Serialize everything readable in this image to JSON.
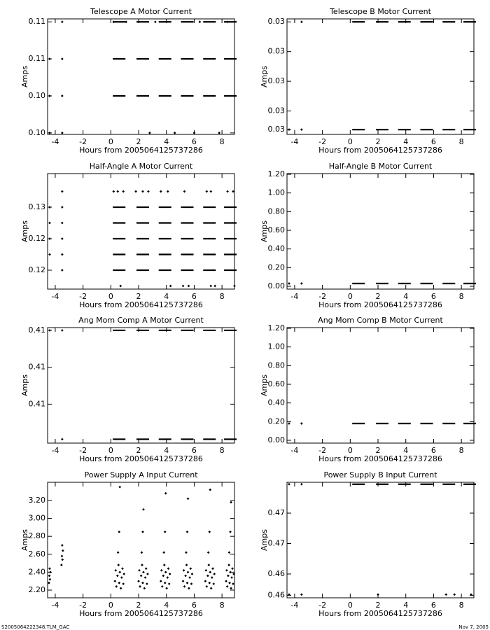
{
  "chart_data": [
    {
      "type": "scatter",
      "title": "Telescope A Motor Current",
      "xlabel": "Hours from 2005064125737286",
      "ylabel": "Amps",
      "xlim": [
        -4.55,
        8.9
      ],
      "xticks": [
        -4,
        -2,
        0,
        2,
        4,
        6,
        8
      ],
      "ylim": [
        0.1009,
        0.1087
      ],
      "yticks": [
        {
          "value": 0.1085,
          "label": "0.11"
        },
        {
          "value": 0.106,
          "label": "0.11"
        },
        {
          "value": 0.1035,
          "label": "0.10"
        },
        {
          "value": 0.101,
          "label": "0.10"
        }
      ],
      "series": [
        {
          "marker": "dash",
          "color": "#000000",
          "x": [
            0.6,
            2.3,
            3.9,
            5.5,
            7.1,
            8.6
          ],
          "y": [
            0.1085,
            0.1085,
            0.1085,
            0.1085,
            0.1085,
            0.1085
          ]
        },
        {
          "marker": "dash",
          "color": "#000000",
          "x": [
            0.6,
            2.3,
            3.9,
            5.5,
            7.1,
            8.6
          ],
          "y": [
            0.106,
            0.106,
            0.106,
            0.106,
            0.106,
            0.106
          ]
        },
        {
          "marker": "dash",
          "color": "#000000",
          "x": [
            0.6,
            2.3,
            3.9,
            5.5,
            7.1,
            8.6
          ],
          "y": [
            0.1035,
            0.1035,
            0.1035,
            0.1035,
            0.1035,
            0.1035
          ]
        },
        {
          "marker": "dot",
          "color": "#000000",
          "x": [
            -3.5,
            -4.4,
            -3.5,
            -4.4,
            -3.5,
            -4.4,
            -3.5,
            0.2,
            1.1,
            2.8,
            3.2,
            4.6,
            6.0,
            6.4,
            7.8,
            8.4
          ],
          "y": [
            0.1085,
            0.106,
            0.106,
            0.1035,
            0.1035,
            0.101,
            0.101,
            0.1085,
            0.1085,
            0.101,
            0.1085,
            0.101,
            0.101,
            0.1085,
            0.101,
            0.1085
          ]
        }
      ]
    },
    {
      "type": "scatter",
      "title": "Telescope B Motor Current",
      "xlabel": "Hours from 2005064125737286",
      "ylabel": "Amps",
      "xlim": [
        -4.55,
        8.9
      ],
      "xticks": [
        -4,
        -2,
        0,
        2,
        4,
        6,
        8
      ],
      "ylim": [
        0.03077,
        0.03388
      ],
      "yticks": [
        {
          "value": 0.0338,
          "label": "0.03"
        },
        {
          "value": 0.033,
          "label": "0.03"
        },
        {
          "value": 0.0322,
          "label": "0.03"
        },
        {
          "value": 0.0314,
          "label": "0.03"
        },
        {
          "value": 0.0309,
          "label": "0.03"
        }
      ],
      "series": [
        {
          "marker": "dash",
          "color": "#000000",
          "x": [
            0.6,
            2.3,
            3.9,
            5.5,
            7.1,
            8.6
          ],
          "y": [
            0.0338,
            0.0338,
            0.0338,
            0.0338,
            0.0338,
            0.0338
          ]
        },
        {
          "marker": "dash",
          "color": "#000000",
          "x": [
            0.6,
            2.3,
            3.9,
            5.5,
            7.1,
            8.6
          ],
          "y": [
            0.0309,
            0.0309,
            0.0309,
            0.0309,
            0.0309,
            0.0309
          ]
        },
        {
          "marker": "dot",
          "color": "#000000",
          "x": [
            -3.5,
            -4.4,
            -3.5
          ],
          "y": [
            0.0338,
            0.0309,
            0.0309
          ]
        }
      ]
    },
    {
      "type": "scatter",
      "title": "Half-Angle A Motor Current",
      "xlabel": "Hours from 2005064125737286",
      "ylabel": "Amps",
      "xlim": [
        -4.55,
        8.9
      ],
      "xticks": [
        -4,
        -2,
        0,
        2,
        4,
        6,
        8
      ],
      "ylim": [
        0.1145,
        0.13283
      ],
      "yticks": [
        {
          "value": 0.1275,
          "label": "0.13"
        },
        {
          "value": 0.1225,
          "label": "0.12"
        },
        {
          "value": 0.1175,
          "label": "0.12"
        }
      ],
      "series": [
        {
          "marker": "dash",
          "color": "#000000",
          "x": [
            0.6,
            2.3,
            3.9,
            5.5,
            7.1,
            8.6
          ],
          "y": [
            0.1275,
            0.1275,
            0.1275,
            0.1275,
            0.1275,
            0.1275
          ]
        },
        {
          "marker": "dash",
          "color": "#000000",
          "x": [
            0.6,
            2.3,
            3.9,
            5.5,
            7.1,
            8.6
          ],
          "y": [
            0.125,
            0.125,
            0.125,
            0.125,
            0.125,
            0.125
          ]
        },
        {
          "marker": "dash",
          "color": "#000000",
          "x": [
            0.6,
            2.3,
            3.9,
            5.5,
            7.1,
            8.6
          ],
          "y": [
            0.1225,
            0.1225,
            0.1225,
            0.1225,
            0.1225,
            0.1225
          ]
        },
        {
          "marker": "dash",
          "color": "#000000",
          "x": [
            0.6,
            2.3,
            3.9,
            5.5,
            7.1,
            8.6
          ],
          "y": [
            0.12,
            0.12,
            0.12,
            0.12,
            0.12,
            0.12
          ]
        },
        {
          "marker": "dash",
          "color": "#000000",
          "x": [
            0.6,
            2.3,
            3.9,
            5.5,
            7.1,
            8.6
          ],
          "y": [
            0.1175,
            0.1175,
            0.1175,
            0.1175,
            0.1175,
            0.1175
          ]
        },
        {
          "marker": "dot",
          "color": "#000000",
          "x": [
            -3.5,
            0.2,
            0.5,
            0.9,
            1.8,
            2.3,
            2.7,
            3.6,
            4.1,
            5.3,
            6.9,
            7.2,
            8.4,
            8.8,
            -4.4,
            -4.4,
            -4.4,
            -4.4,
            -3.5,
            -3.5,
            -3.5,
            -3.5,
            -3.5,
            0.7,
            4.3,
            5.2,
            5.6,
            7.2,
            7.5,
            8.9
          ],
          "y": [
            0.13,
            0.13,
            0.13,
            0.13,
            0.13,
            0.13,
            0.13,
            0.13,
            0.13,
            0.13,
            0.13,
            0.13,
            0.13,
            0.13,
            0.1275,
            0.125,
            0.1225,
            0.12,
            0.1275,
            0.125,
            0.1225,
            0.12,
            0.1175,
            0.115,
            0.115,
            0.115,
            0.115,
            0.115,
            0.115,
            0.115
          ]
        }
      ]
    },
    {
      "type": "scatter",
      "title": "Half-Angle B Motor Current",
      "xlabel": "Hours from 2005064125737286",
      "ylabel": "Amps",
      "xlim": [
        -4.55,
        8.9
      ],
      "xticks": [
        -4,
        -2,
        0,
        2,
        4,
        6,
        8
      ],
      "ylim": [
        -0.03,
        1.2075
      ],
      "yticks": [
        {
          "value": 0,
          "label": "0.00"
        },
        {
          "value": 0.2,
          "label": "0.20"
        },
        {
          "value": 0.4,
          "label": "0.40"
        },
        {
          "value": 0.6,
          "label": "0.60"
        },
        {
          "value": 0.8,
          "label": "0.80"
        },
        {
          "value": 1,
          "label": "1.00"
        },
        {
          "value": 1.2,
          "label": "1.20"
        }
      ],
      "series": [
        {
          "marker": "dash",
          "color": "#000000",
          "x": [
            0.6,
            2.3,
            3.9,
            5.5,
            7.1,
            8.6
          ],
          "y": [
            0.03,
            0.03,
            0.03,
            0.03,
            0.03,
            0.03
          ]
        },
        {
          "marker": "dot",
          "color": "#000000",
          "x": [
            -4.4,
            -3.5
          ],
          "y": [
            0.03,
            0.03
          ]
        }
      ]
    },
    {
      "type": "scatter",
      "title": "Ang Mom Comp A Motor Current",
      "xlabel": "Hours from 2005064125737286",
      "ylabel": "Amps",
      "xlim": [
        -4.55,
        8.9
      ],
      "xticks": [
        -4,
        -2,
        0,
        2,
        4,
        6,
        8
      ],
      "ylim": [
        0.40839,
        0.41465
      ],
      "yticks": [
        {
          "value": 0.4145,
          "label": "0.41"
        },
        {
          "value": 0.4125,
          "label": "0.41"
        },
        {
          "value": 0.4105,
          "label": "0.41"
        }
      ],
      "series": [
        {
          "marker": "dash",
          "color": "#000000",
          "x": [
            0.6,
            2.3,
            3.9,
            5.5,
            7.1,
            8.6
          ],
          "y": [
            0.4145,
            0.4145,
            0.4145,
            0.4145,
            0.4145,
            0.4145
          ]
        },
        {
          "marker": "dash",
          "color": "#000000",
          "x": [
            0.6,
            2.3,
            3.9,
            5.5,
            7.1,
            8.6
          ],
          "y": [
            0.4086,
            0.4086,
            0.4086,
            0.4086,
            0.4086,
            0.4086
          ]
        },
        {
          "marker": "dot",
          "color": "#000000",
          "x": [
            -4.4,
            -3.5,
            -3.5
          ],
          "y": [
            0.4145,
            0.4145,
            0.4086
          ]
        }
      ]
    },
    {
      "type": "scatter",
      "title": "Ang Mom Comp B Motor Current",
      "xlabel": "Hours from 2005064125737286",
      "ylabel": "Amps",
      "xlim": [
        -4.55,
        8.9
      ],
      "xticks": [
        -4,
        -2,
        0,
        2,
        4,
        6,
        8
      ],
      "ylim": [
        -0.03,
        1.2075
      ],
      "yticks": [
        {
          "value": 0,
          "label": "0.00"
        },
        {
          "value": 0.2,
          "label": "0.20"
        },
        {
          "value": 0.4,
          "label": "0.40"
        },
        {
          "value": 0.6,
          "label": "0.60"
        },
        {
          "value": 0.8,
          "label": "0.80"
        },
        {
          "value": 1,
          "label": "1.00"
        },
        {
          "value": 1.2,
          "label": "1.20"
        }
      ],
      "series": [
        {
          "marker": "dash",
          "color": "#000000",
          "x": [
            0.6,
            2.3,
            3.9,
            5.5,
            7.1,
            8.6
          ],
          "y": [
            0.18,
            0.18,
            0.18,
            0.18,
            0.18,
            0.18
          ]
        },
        {
          "marker": "dot",
          "color": "#000000",
          "x": [
            -4.4,
            -3.5
          ],
          "y": [
            0.18,
            0.18
          ]
        }
      ]
    },
    {
      "type": "scatter",
      "title": "Power Supply A Input Current",
      "xlabel": "Hours from 2005064125737286",
      "ylabel": "Amps",
      "xlim": [
        -4.55,
        8.9
      ],
      "xticks": [
        -4,
        -2,
        0,
        2,
        4,
        6,
        8
      ],
      "ylim": [
        2.114,
        3.403
      ],
      "yticks": [
        {
          "value": 2.2,
          "label": "2.20"
        },
        {
          "value": 2.4,
          "label": "2.40"
        },
        {
          "value": 2.6,
          "label": "2.60"
        },
        {
          "value": 2.8,
          "label": "2.80"
        },
        {
          "value": 3,
          "label": "3.00"
        },
        {
          "value": 3.2,
          "label": "3.20"
        }
      ],
      "series": [
        {
          "marker": "dot",
          "color": "#000000",
          "x": [
            -4.45,
            -4.42,
            -4.4,
            -4.38,
            -4.35,
            -3.55,
            -3.52,
            -3.5,
            -3.48,
            -3.45,
            0.3,
            0.35,
            0.4,
            0.48,
            0.55,
            0.6,
            0.65,
            0.72,
            0.78,
            0.84,
            0.9,
            0.95,
            0.52,
            0.6,
            0.65,
            2.0,
            2.05,
            2.1,
            2.18,
            2.25,
            2.3,
            2.35,
            2.42,
            2.48,
            2.54,
            2.6,
            2.65,
            2.22,
            2.3,
            2.35,
            3.6,
            3.65,
            3.7,
            3.78,
            3.85,
            3.9,
            3.95,
            4.02,
            4.08,
            4.14,
            4.2,
            4.25,
            3.82,
            3.9,
            3.95,
            5.2,
            5.25,
            5.3,
            5.38,
            5.45,
            5.5,
            5.55,
            5.62,
            5.68,
            5.74,
            5.8,
            5.85,
            5.42,
            5.5,
            5.55,
            6.8,
            6.85,
            6.9,
            6.98,
            7.05,
            7.1,
            7.15,
            7.22,
            7.28,
            7.34,
            7.4,
            7.45,
            7.02,
            7.1,
            7.15,
            8.3,
            8.34,
            8.38,
            8.44,
            8.5,
            8.55,
            8.6,
            8.65,
            8.7,
            8.75,
            8.8,
            8.85,
            8.52,
            8.6,
            8.65
          ],
          "y": [
            2.28,
            2.36,
            2.44,
            2.32,
            2.4,
            2.48,
            2.58,
            2.7,
            2.54,
            2.64,
            2.3,
            2.42,
            2.24,
            2.36,
            2.48,
            2.28,
            2.4,
            2.22,
            2.34,
            2.44,
            2.27,
            2.38,
            2.62,
            2.85,
            3.35,
            2.3,
            2.42,
            2.24,
            2.36,
            2.48,
            2.28,
            2.4,
            2.22,
            2.34,
            2.44,
            2.27,
            2.38,
            2.62,
            2.85,
            3.1,
            2.3,
            2.42,
            2.24,
            2.36,
            2.48,
            2.28,
            2.4,
            2.22,
            2.34,
            2.44,
            2.27,
            2.38,
            2.62,
            2.85,
            3.28,
            2.3,
            2.42,
            2.24,
            2.36,
            2.48,
            2.28,
            2.4,
            2.22,
            2.34,
            2.44,
            2.27,
            2.38,
            2.62,
            2.85,
            3.22,
            2.3,
            2.42,
            2.24,
            2.36,
            2.48,
            2.28,
            2.4,
            2.22,
            2.34,
            2.44,
            2.27,
            2.38,
            2.62,
            2.85,
            3.32,
            2.3,
            2.42,
            2.24,
            2.36,
            2.48,
            2.28,
            2.4,
            2.22,
            2.34,
            2.44,
            2.27,
            2.38,
            2.62,
            2.85,
            3.18
          ]
        }
      ]
    },
    {
      "type": "scatter",
      "title": "Power Supply B Input Current",
      "xlabel": "Hours from 2005064125737286",
      "ylabel": "Amps",
      "xlim": [
        -4.55,
        8.9
      ],
      "xticks": [
        -4,
        -2,
        0,
        2,
        4,
        6,
        8
      ],
      "ylim": [
        0.46137,
        0.47655
      ],
      "yticks": [
        {
          "value": 0.4725,
          "label": "0.47"
        },
        {
          "value": 0.4685,
          "label": "0.47"
        },
        {
          "value": 0.4645,
          "label": "0.46"
        },
        {
          "value": 0.4617,
          "label": "0.46"
        }
      ],
      "series": [
        {
          "marker": "dash",
          "color": "#000000",
          "x": [
            0.6,
            2.3,
            3.9,
            5.5,
            7.1,
            8.6
          ],
          "y": [
            0.4763,
            0.4763,
            0.4763,
            0.4763,
            0.4763,
            0.4763
          ]
        },
        {
          "marker": "dot",
          "color": "#000000",
          "x": [
            -4.4,
            -3.5,
            -4.4,
            -3.5,
            2.0,
            6.9,
            7.5,
            8.7
          ],
          "y": [
            0.4763,
            0.4763,
            0.4618,
            0.4618,
            0.4618,
            0.4618,
            0.4618,
            0.4618
          ]
        }
      ]
    }
  ],
  "footer": {
    "left": "S2005064222348.TLM_GAC",
    "right": "Nov  7, 2005"
  }
}
